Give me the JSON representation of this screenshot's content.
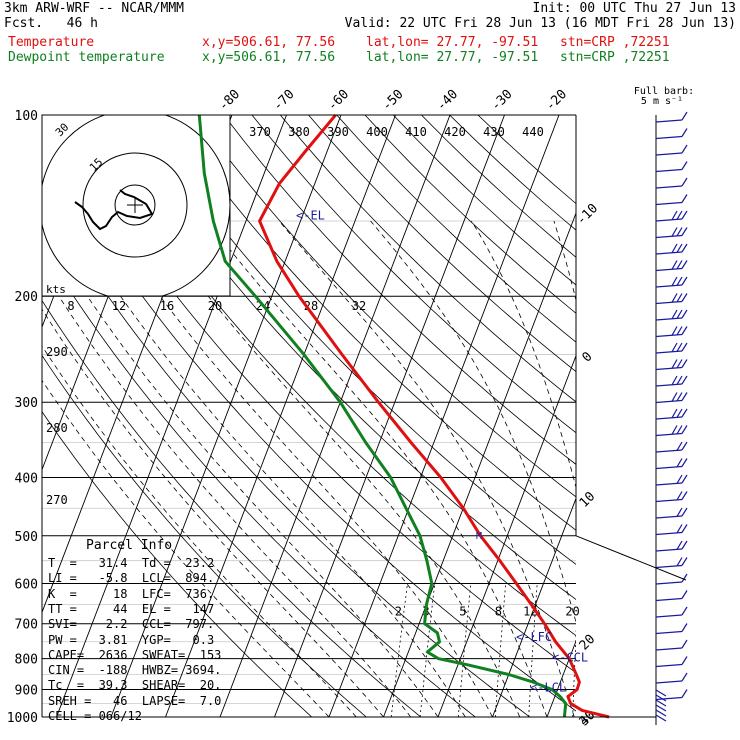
{
  "header": {
    "model": "3km ARW-WRF -- NCAR/MMM",
    "fcst": "Fcst.   46 h",
    "init": "Init: 00 UTC Thu 27 Jun 13",
    "valid": "Valid: 22 UTC Fri 28 Jun 13 (16 MDT Fri 28 Jun 13)",
    "line_temp": {
      "name": "Temperature",
      "xy": "x,y=506.61, 77.56",
      "latlon": "lat,lon= 27.77, -97.51",
      "stn": "stn=CRP ,72251"
    },
    "line_dew": {
      "name": "Dewpoint temperature",
      "xy": "x,y=506.61, 77.56",
      "latlon": "lat,lon= 27.77, -97.51",
      "stn": "stn=CRP ,72251"
    },
    "barb_key": "Full barb:",
    "barb_key2": "5 m s⁻¹"
  },
  "chart_data": {
    "type": "line",
    "title": "",
    "pressure_levels": [
      100,
      200,
      300,
      400,
      500,
      600,
      700,
      800,
      900,
      1000
    ],
    "temperature_ticks": [
      -80,
      -70,
      -60,
      -50,
      -40,
      -30,
      -20,
      -10,
      0,
      10,
      20,
      30,
      40
    ],
    "theta_labels": [
      370,
      380,
      390,
      400,
      410,
      420,
      430,
      440
    ],
    "theta_left_labels": [
      290,
      280,
      270
    ],
    "mixing_ratio_labels": [
      2,
      3,
      5,
      8,
      12,
      20
    ],
    "hodo_speed_labels": [
      8,
      12,
      16,
      20,
      24,
      28,
      32
    ],
    "hodo_ring_labels": [
      15,
      30
    ],
    "hodo_unit": "kts",
    "series": [
      {
        "name": "Temperature",
        "color": "#e01010",
        "points": [
          [
            1000,
            31.4
          ],
          [
            975,
            26.0
          ],
          [
            950,
            23.4
          ],
          [
            925,
            22.4
          ],
          [
            900,
            23.6
          ],
          [
            875,
            23.5
          ],
          [
            850,
            22.4
          ],
          [
            800,
            20.0
          ],
          [
            750,
            16.3
          ],
          [
            700,
            13.0
          ],
          [
            650,
            9.2
          ],
          [
            600,
            5.0
          ],
          [
            550,
            0.4
          ],
          [
            500,
            -4.9
          ],
          [
            450,
            -10.0
          ],
          [
            400,
            -16.3
          ],
          [
            350,
            -24.2
          ],
          [
            300,
            -33.0
          ],
          [
            250,
            -43.0
          ],
          [
            200,
            -55.0
          ],
          [
            175,
            -61.5
          ],
          [
            150,
            -67.5
          ],
          [
            130,
            -66.5
          ],
          [
            115,
            -64.0
          ],
          [
            100,
            -61.0
          ]
        ]
      },
      {
        "name": "Dewpoint temperature",
        "color": "#108020",
        "points": [
          [
            1000,
            23.2
          ],
          [
            950,
            22.5
          ],
          [
            925,
            21.0
          ],
          [
            900,
            19.0
          ],
          [
            875,
            15.0
          ],
          [
            850,
            10.0
          ],
          [
            820,
            2.0
          ],
          [
            800,
            -4.0
          ],
          [
            780,
            -6.5
          ],
          [
            750,
            -5.0
          ],
          [
            725,
            -6.0
          ],
          [
            700,
            -9.0
          ],
          [
            650,
            -10.0
          ],
          [
            600,
            -10.5
          ],
          [
            550,
            -13.0
          ],
          [
            500,
            -16.0
          ],
          [
            450,
            -20.5
          ],
          [
            400,
            -25.5
          ],
          [
            350,
            -32.5
          ],
          [
            300,
            -40.0
          ],
          [
            250,
            -50.0
          ],
          [
            200,
            -63.0
          ],
          [
            175,
            -71.0
          ],
          [
            150,
            -76.0
          ],
          [
            125,
            -81.0
          ],
          [
            100,
            -86.0
          ]
        ]
      }
    ],
    "annotations": [
      {
        "text": "<-EL",
        "p": 147
      },
      {
        "text": "<-LFC",
        "p": 736
      },
      {
        "text": "<-CCL",
        "p": 797
      },
      {
        "text": "<-LCL",
        "p": 894
      }
    ]
  },
  "parcel_info": {
    "title": "Parcel Info",
    "rows": [
      "T  =   31.4  Td =  23.2",
      "LI =   -5.8  LCL=  894.",
      "K  =     18  LFC=  736.",
      "TT =     44  EL =   147",
      "SVI=    2.2  CCL=  797.",
      "PW =   3.81  YGP=   0.3",
      "CAPE=  2636  SWEAT=  153",
      "CIN =  -188  HWBZ= 3694.",
      "Tc  =  39.3  SHEAR=  20.",
      "SREH =   46  LAPSE=  7.0",
      "CELL = 066/12"
    ]
  }
}
